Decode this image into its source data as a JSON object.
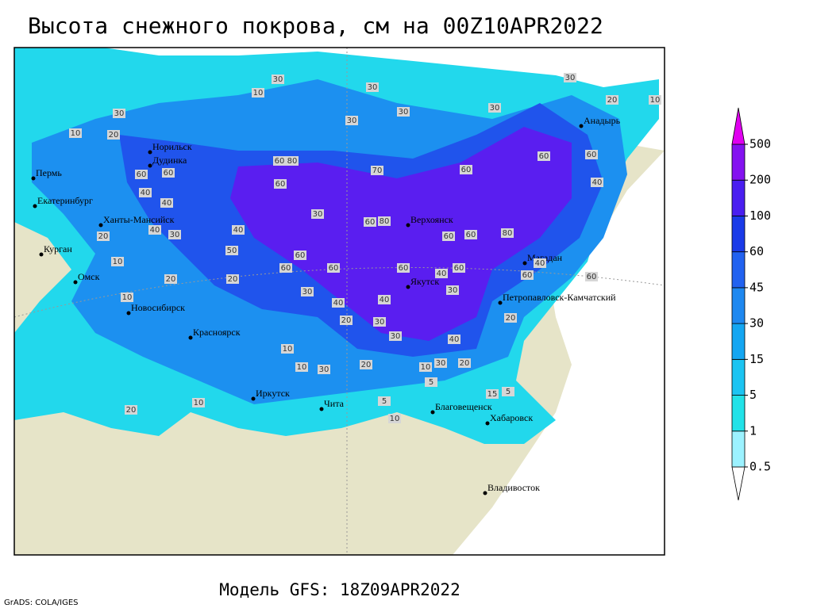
{
  "header": {
    "title": "Высота снежного покрова, см на 00Z10APR2022"
  },
  "legend": {
    "levels": [
      0.5,
      1,
      5,
      15,
      30,
      45,
      60,
      100,
      200,
      500
    ],
    "colors": [
      "#ffffff",
      "#9cf2ff",
      "#22e2e8",
      "#1cc4f2",
      "#14a6f2",
      "#1e88f0",
      "#2262f0",
      "#1a3ae8",
      "#4a1ef0",
      "#8412f0",
      "#e000f0"
    ]
  },
  "cities": [
    "Норильск",
    "Дудинка",
    "Пермь",
    "Екатеринбург",
    "Ханты-Мансийск",
    "Курган",
    "Омск",
    "Новосибирск",
    "Красноярск",
    "Иркутск",
    "Чита",
    "Благовещенск",
    "Хабаровск",
    "Владивосток",
    "Якутск",
    "Верхоянск",
    "Магадан",
    "Анадырь",
    "Петропавловск-Камчатский"
  ],
  "contour_labels": [
    "30",
    "10",
    "30",
    "30",
    "30",
    "30",
    "30",
    "20",
    "10",
    "10",
    "20",
    "30",
    "60",
    "80",
    "70",
    "60",
    "60",
    "60",
    "40",
    "60",
    "60",
    "40",
    "40",
    "60",
    "30",
    "60",
    "80",
    "60",
    "60",
    "80",
    "40",
    "40",
    "30",
    "20",
    "50",
    "60",
    "60",
    "60",
    "60",
    "40",
    "60",
    "60",
    "40",
    "60",
    "20",
    "20",
    "10",
    "30",
    "40",
    "40",
    "30",
    "20",
    "20",
    "30",
    "30",
    "40",
    "10",
    "10",
    "30",
    "20",
    "10",
    "30",
    "20",
    "5",
    "15",
    "5",
    "5",
    "10",
    "10",
    "20",
    "10"
  ],
  "footer": {
    "model": "Модель GFS: 18Z09APR2022",
    "credit": "GrADS: COLA/IGES"
  }
}
